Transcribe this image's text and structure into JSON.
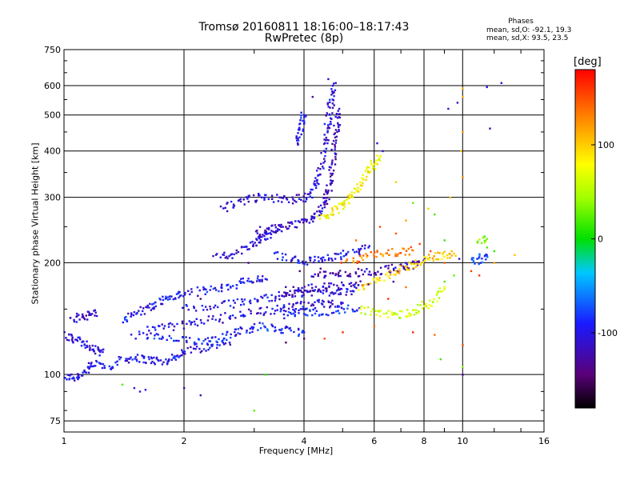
{
  "chart_data": {
    "type": "scatter",
    "title": "Tromsø 20160811 18:16:00–18:17:43",
    "subtitle": "RwPretec (8p)",
    "xlabel": "Frequency [MHz]",
    "ylabel": "Stationary phase Virtual Height [km]",
    "x_scale": "log",
    "y_scale": "log",
    "xlim": [
      1,
      16
    ],
    "ylim": [
      70,
      750
    ],
    "x_ticks": [
      "1",
      "2",
      "4",
      "6",
      "8",
      "10",
      "16"
    ],
    "y_ticks": [
      "75",
      "100",
      "200",
      "300",
      "400",
      "500",
      "600",
      "750"
    ],
    "grid": true,
    "stats": {
      "heading": "Phases",
      "line_o": "mean, sd,O: -92.1, 19.3",
      "line_x": "mean, sd,X:  93.5, 23.5"
    },
    "colorbar": {
      "label": "[deg]",
      "range": [
        -180,
        180
      ],
      "ticks": [
        "100",
        "0",
        "-100"
      ],
      "colormap": "rainbow"
    },
    "traces": [
      {
        "phase": -100,
        "points": [
          [
            1.0,
            99
          ],
          [
            1.05,
            98
          ],
          [
            1.1,
            100
          ],
          [
            1.15,
            104
          ],
          [
            1.2,
            107
          ],
          [
            1.3,
            105
          ],
          [
            1.4,
            110
          ],
          [
            1.5,
            111
          ],
          [
            1.6,
            110
          ],
          [
            1.7,
            109
          ],
          [
            1.8,
            108
          ],
          [
            1.9,
            112
          ],
          [
            2.0,
            115
          ],
          [
            2.2,
            118
          ],
          [
            2.4,
            120
          ],
          [
            2.6,
            122
          ]
        ]
      },
      {
        "phase": -110,
        "points": [
          [
            1.05,
            140
          ],
          [
            1.1,
            143
          ],
          [
            1.15,
            145
          ],
          [
            1.2,
            147
          ]
        ]
      },
      {
        "phase": -110,
        "points": [
          [
            1.0,
            128
          ],
          [
            1.05,
            125
          ],
          [
            1.1,
            122
          ],
          [
            1.15,
            119
          ],
          [
            1.2,
            117
          ],
          [
            1.25,
            115
          ]
        ]
      },
      {
        "phase": -95,
        "points": [
          [
            1.4,
            140
          ],
          [
            1.5,
            146
          ],
          [
            1.6,
            150
          ],
          [
            1.7,
            155
          ],
          [
            1.8,
            160
          ],
          [
            1.9,
            163
          ],
          [
            2.0,
            165
          ],
          [
            2.2,
            168
          ],
          [
            2.4,
            170
          ],
          [
            2.6,
            173
          ],
          [
            2.8,
            177
          ],
          [
            3.0,
            180
          ],
          [
            3.2,
            181
          ]
        ]
      },
      {
        "phase": -90,
        "points": [
          [
            1.5,
            128
          ],
          [
            1.7,
            126
          ],
          [
            1.9,
            124
          ],
          [
            2.1,
            123
          ],
          [
            2.3,
            124
          ],
          [
            2.5,
            127
          ],
          [
            2.7,
            130
          ],
          [
            2.9,
            133
          ],
          [
            3.1,
            135
          ],
          [
            3.4,
            133
          ],
          [
            3.7,
            131
          ],
          [
            4.0,
            130
          ]
        ]
      },
      {
        "phase": -105,
        "points": [
          [
            1.6,
            132
          ],
          [
            1.8,
            134
          ],
          [
            2.0,
            136
          ],
          [
            2.2,
            139
          ],
          [
            2.5,
            143
          ],
          [
            2.8,
            146
          ],
          [
            3.1,
            148
          ],
          [
            3.4,
            150
          ],
          [
            3.7,
            152
          ],
          [
            4.0,
            154
          ],
          [
            4.3,
            155
          ],
          [
            4.6,
            156
          ],
          [
            5.0,
            156
          ]
        ]
      },
      {
        "phase": -100,
        "points": [
          [
            2.0,
            150
          ],
          [
            2.3,
            152
          ],
          [
            2.6,
            155
          ],
          [
            2.9,
            158
          ],
          [
            3.2,
            161
          ],
          [
            3.5,
            163
          ],
          [
            3.8,
            165
          ],
          [
            4.1,
            166
          ],
          [
            4.5,
            167
          ],
          [
            4.9,
            168
          ],
          [
            5.3,
            168
          ]
        ]
      },
      {
        "phase": -110,
        "points": [
          [
            2.4,
            205
          ],
          [
            2.6,
            210
          ],
          [
            2.8,
            217
          ],
          [
            3.0,
            225
          ],
          [
            3.1,
            230
          ],
          [
            3.2,
            236
          ],
          [
            3.3,
            243
          ],
          [
            3.5,
            250
          ]
        ]
      },
      {
        "phase": -115,
        "points": [
          [
            3.0,
            240
          ],
          [
            3.2,
            246
          ],
          [
            3.5,
            249
          ],
          [
            3.8,
            252
          ],
          [
            4.0,
            258
          ],
          [
            4.2,
            266
          ],
          [
            4.4,
            278
          ],
          [
            4.5,
            290
          ],
          [
            4.6,
            310
          ],
          [
            4.65,
            330
          ],
          [
            4.7,
            360
          ],
          [
            4.75,
            400
          ],
          [
            4.8,
            440
          ],
          [
            4.85,
            480
          ],
          [
            4.9,
            520
          ]
        ]
      },
      {
        "phase": -105,
        "points": [
          [
            2.5,
            280
          ],
          [
            2.7,
            288
          ],
          [
            2.9,
            296
          ],
          [
            3.1,
            300
          ],
          [
            3.4,
            298
          ],
          [
            3.7,
            296
          ],
          [
            4.0,
            300
          ],
          [
            4.2,
            310
          ],
          [
            4.3,
            330
          ],
          [
            4.4,
            360
          ],
          [
            4.5,
            400
          ],
          [
            4.55,
            440
          ],
          [
            4.6,
            480
          ],
          [
            4.65,
            520
          ],
          [
            4.7,
            560
          ],
          [
            4.72,
            600
          ]
        ]
      },
      {
        "phase": -100,
        "points": [
          [
            3.4,
            210
          ],
          [
            3.7,
            205
          ],
          [
            4.0,
            203
          ],
          [
            4.3,
            203
          ],
          [
            4.6,
            205
          ],
          [
            5.0,
            210
          ],
          [
            5.4,
            215
          ],
          [
            5.8,
            220
          ]
        ]
      },
      {
        "phase": -100,
        "points": [
          [
            3.8,
            420
          ],
          [
            3.9,
            450
          ],
          [
            3.95,
            480
          ],
          [
            4.0,
            500
          ]
        ]
      },
      {
        "phase": -115,
        "points": [
          [
            3.5,
            168
          ],
          [
            3.8,
            168
          ],
          [
            4.1,
            170
          ],
          [
            4.4,
            172
          ],
          [
            4.8,
            173
          ],
          [
            5.2,
            174
          ],
          [
            5.6,
            174
          ]
        ]
      },
      {
        "phase": -90,
        "points": [
          [
            3.5,
            145
          ],
          [
            3.8,
            146
          ],
          [
            4.1,
            147
          ],
          [
            4.5,
            148
          ],
          [
            5.0,
            150
          ],
          [
            5.5,
            151
          ]
        ]
      },
      {
        "phase": -120,
        "points": [
          [
            4.2,
            185
          ],
          [
            4.6,
            186
          ],
          [
            5.0,
            187
          ],
          [
            5.5,
            188
          ],
          [
            6.0,
            190
          ],
          [
            6.5,
            192
          ],
          [
            7.0,
            195
          ],
          [
            7.5,
            198
          ],
          [
            8.0,
            202
          ]
        ]
      },
      {
        "phase": 80,
        "points": [
          [
            4.4,
            265
          ],
          [
            4.6,
            270
          ],
          [
            4.8,
            278
          ],
          [
            5.0,
            290
          ],
          [
            5.2,
            300
          ],
          [
            5.4,
            315
          ],
          [
            5.6,
            330
          ],
          [
            5.8,
            350
          ],
          [
            6.0,
            370
          ],
          [
            6.2,
            385
          ]
        ]
      },
      {
        "phase": 100,
        "points": [
          [
            5.5,
            170
          ],
          [
            6.0,
            178
          ],
          [
            6.5,
            185
          ],
          [
            7.0,
            192
          ],
          [
            7.5,
            198
          ],
          [
            8.0,
            203
          ],
          [
            8.5,
            207
          ],
          [
            9.0,
            210
          ],
          [
            9.5,
            212
          ]
        ]
      },
      {
        "phase": 60,
        "points": [
          [
            5.5,
            150
          ],
          [
            6.0,
            148
          ],
          [
            6.5,
            146
          ],
          [
            7.0,
            145
          ],
          [
            7.5,
            148
          ],
          [
            8.0,
            153
          ],
          [
            8.5,
            160
          ],
          [
            9.0,
            170
          ]
        ]
      },
      {
        "phase": 130,
        "points": [
          [
            5.0,
            200
          ],
          [
            5.5,
            205
          ],
          [
            6.0,
            210
          ],
          [
            6.5,
            212
          ],
          [
            7.0,
            214
          ],
          [
            7.5,
            216
          ]
        ]
      },
      {
        "phase": -80,
        "points": [
          [
            10.5,
            200
          ],
          [
            11.0,
            205
          ],
          [
            11.5,
            210
          ]
        ]
      },
      {
        "phase": 30,
        "points": [
          [
            11.0,
            230
          ],
          [
            11.5,
            232
          ]
        ]
      }
    ],
    "scatter_spots": [
      {
        "phase": -110,
        "points": [
          [
            1.5,
            92
          ],
          [
            1.55,
            90
          ],
          [
            1.6,
            91
          ],
          [
            2.0,
            92
          ],
          [
            2.2,
            88
          ],
          [
            4.6,
            625
          ],
          [
            4.8,
            610
          ],
          [
            4.2,
            560
          ],
          [
            9.7,
            540
          ],
          [
            9.2,
            520
          ],
          [
            12.5,
            610
          ],
          [
            11.5,
            595
          ],
          [
            11.7,
            460
          ],
          [
            9.8,
            205
          ],
          [
            6.1,
            420
          ],
          [
            6.3,
            400
          ]
        ]
      },
      {
        "phase": 110,
        "points": [
          [
            10.0,
            590
          ],
          [
            10.0,
            560
          ],
          [
            10.0,
            450
          ],
          [
            9.9,
            400
          ],
          [
            10.0,
            340
          ],
          [
            9.3,
            300
          ],
          [
            8.2,
            280
          ],
          [
            7.2,
            260
          ],
          [
            6.8,
            330
          ],
          [
            13.5,
            210
          ],
          [
            12.0,
            200
          ]
        ]
      },
      {
        "phase": 20,
        "points": [
          [
            7.5,
            290
          ],
          [
            8.5,
            270
          ],
          [
            9.0,
            230
          ],
          [
            9.5,
            185
          ],
          [
            9.0,
            178
          ],
          [
            11.5,
            220
          ],
          [
            12.0,
            215
          ],
          [
            8.8,
            110
          ],
          [
            10.0,
            105
          ],
          [
            3.0,
            80
          ],
          [
            3.2,
            100
          ],
          [
            1.4,
            94
          ]
        ]
      },
      {
        "phase": 150,
        "points": [
          [
            5.4,
            230
          ],
          [
            6.2,
            250
          ],
          [
            6.8,
            240
          ],
          [
            7.8,
            225
          ],
          [
            8.3,
            215
          ],
          [
            9.0,
            200
          ],
          [
            10.5,
            190
          ],
          [
            11.0,
            185
          ],
          [
            6.5,
            160
          ],
          [
            7.2,
            172
          ],
          [
            4.5,
            125
          ],
          [
            5.0,
            130
          ],
          [
            6.0,
            135
          ],
          [
            7.5,
            130
          ],
          [
            8.5,
            128
          ],
          [
            10.0,
            120
          ]
        ]
      },
      {
        "phase": -140,
        "points": [
          [
            10.0,
            100
          ],
          [
            3.5,
            300
          ],
          [
            3.6,
            250
          ],
          [
            2.9,
            200
          ],
          [
            3.9,
            190
          ],
          [
            4.4,
            193
          ],
          [
            5.8,
            175
          ],
          [
            6.7,
            178
          ],
          [
            2.2,
            160
          ],
          [
            2.5,
            138
          ],
          [
            2.7,
            128
          ],
          [
            3.6,
            122
          ],
          [
            4.0,
            125
          ],
          [
            5.5,
            215
          ],
          [
            7.0,
            198
          ]
        ]
      }
    ]
  }
}
